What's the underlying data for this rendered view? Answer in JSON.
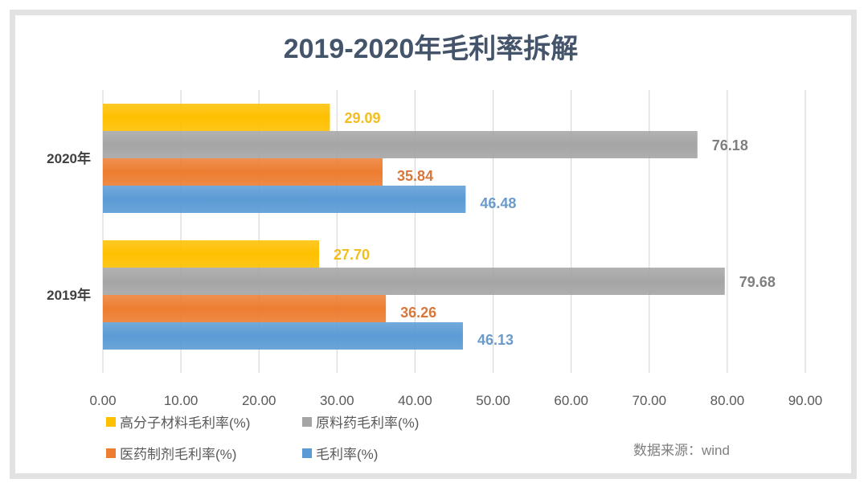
{
  "chart_data": {
    "type": "bar",
    "orientation": "horizontal",
    "title": "2019-2020年毛利率拆解",
    "categories": [
      "2020年",
      "2019年"
    ],
    "series": [
      {
        "name": "高分子材料毛利率(%)",
        "color": "#FFC000",
        "label_color": "#F2BE1E",
        "values": [
          29.09,
          27.7
        ]
      },
      {
        "name": "原料药毛利率(%)",
        "color": "#A5A5A5",
        "label_color": "#7F7F7F",
        "values": [
          76.18,
          79.68
        ]
      },
      {
        "name": "医药制剂毛利率(%)",
        "color": "#ED7D31",
        "label_color": "#D9773A",
        "values": [
          35.84,
          36.26
        ]
      },
      {
        "name": "毛利率(%)",
        "color": "#5B9BD5",
        "label_color": "#6A9BCB",
        "values": [
          46.48,
          46.13
        ]
      }
    ],
    "data_labels": [
      [
        "29.09",
        "27.70"
      ],
      [
        "76.18",
        "79.68"
      ],
      [
        "35.84",
        "36.26"
      ],
      [
        "46.48",
        "46.13"
      ]
    ],
    "xlim": [
      0,
      90
    ],
    "xticks": [
      "0.00",
      "10.00",
      "20.00",
      "30.00",
      "40.00",
      "50.00",
      "60.00",
      "70.00",
      "80.00",
      "90.00"
    ],
    "grid": true,
    "legend_position": "bottom-left",
    "source": "数据来源：wind"
  }
}
